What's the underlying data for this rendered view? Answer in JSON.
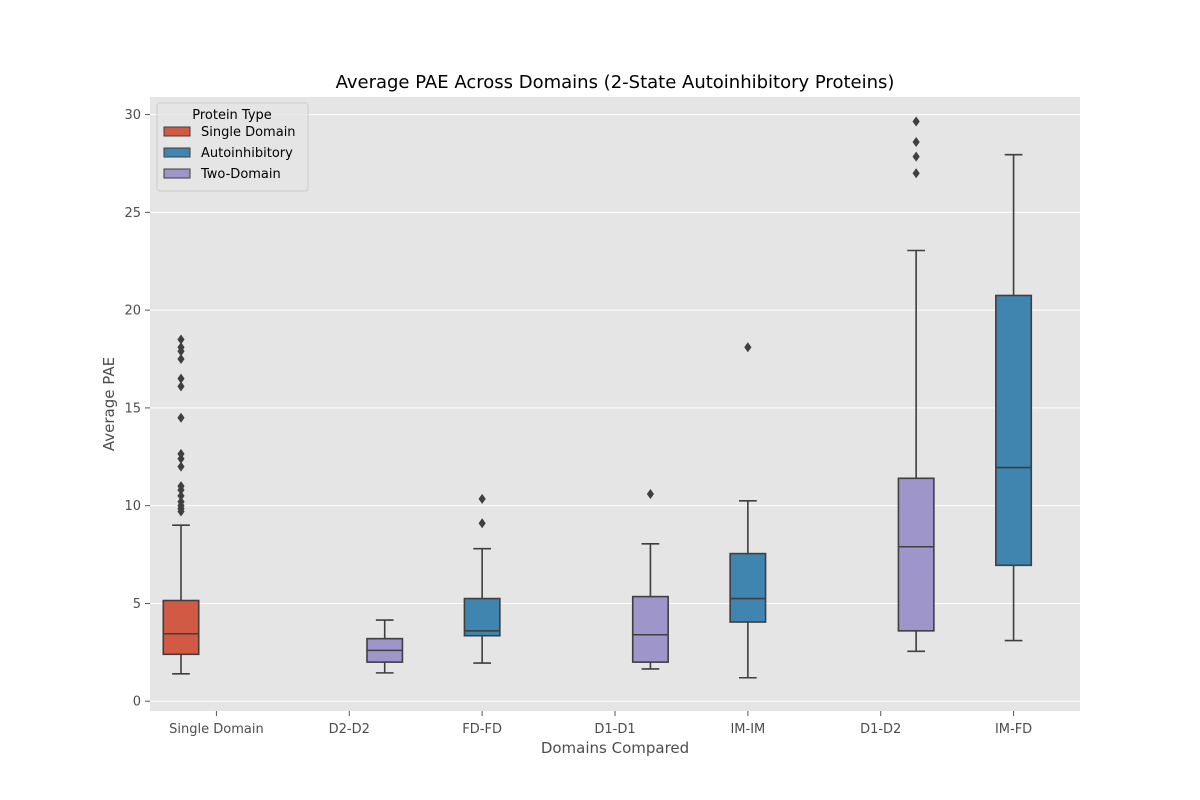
{
  "chart_data": {
    "type": "box",
    "title": "Average PAE Across Domains (2-State Autoinhibitory Proteins)",
    "xlabel": "Domains Compared",
    "ylabel": "Average PAE",
    "ylim": [
      -0.5,
      30.9
    ],
    "yticks": [
      0,
      5,
      10,
      15,
      20,
      25,
      30
    ],
    "grid": true,
    "categories": [
      "Single Domain",
      "D2-D2",
      "FD-FD",
      "D1-D1",
      "IM-IM",
      "D1-D2",
      "IM-FD"
    ],
    "legend": {
      "title": "Protein Type",
      "placement": "top-left",
      "entries": [
        {
          "name": "Single Domain",
          "color": "#d25a44"
        },
        {
          "name": "Autoinhibitory",
          "color": "#3f85af"
        },
        {
          "name": "Two-Domain",
          "color": "#9e95cb"
        }
      ]
    },
    "series": [
      {
        "name": "Single Domain",
        "color": "#d25a44",
        "boxes": [
          {
            "category": "Single Domain",
            "whisker_low": 1.4,
            "q1": 2.4,
            "median": 3.45,
            "q3": 5.15,
            "whisker_high": 9.0,
            "outliers": [
              9.7,
              9.85,
              10.0,
              10.2,
              10.5,
              10.8,
              11.0,
              12.0,
              12.4,
              12.65,
              14.5,
              16.1,
              16.5,
              17.5,
              17.9,
              18.1,
              18.5
            ]
          }
        ]
      },
      {
        "name": "Autoinhibitory",
        "color": "#3f85af",
        "boxes": [
          {
            "category": "FD-FD",
            "whisker_low": 1.95,
            "q1": 3.35,
            "median": 3.6,
            "q3": 5.25,
            "whisker_high": 7.8,
            "outliers": [
              9.1,
              10.35
            ]
          },
          {
            "category": "IM-IM",
            "whisker_low": 1.2,
            "q1": 4.05,
            "median": 5.25,
            "q3": 7.55,
            "whisker_high": 10.25,
            "outliers": [
              18.1
            ]
          },
          {
            "category": "IM-FD",
            "whisker_low": 3.1,
            "q1": 6.95,
            "median": 11.95,
            "q3": 20.75,
            "whisker_high": 27.95,
            "outliers": []
          }
        ]
      },
      {
        "name": "Two-Domain",
        "color": "#9e95cb",
        "boxes": [
          {
            "category": "D2-D2",
            "whisker_low": 1.45,
            "q1": 2.0,
            "median": 2.6,
            "q3": 3.2,
            "whisker_high": 4.15,
            "outliers": []
          },
          {
            "category": "D1-D1",
            "whisker_low": 1.65,
            "q1": 2.0,
            "median": 3.4,
            "q3": 5.35,
            "whisker_high": 8.05,
            "outliers": [
              10.6
            ]
          },
          {
            "category": "D1-D2",
            "whisker_low": 2.55,
            "q1": 3.6,
            "median": 7.9,
            "q3": 11.4,
            "whisker_high": 23.05,
            "outliers": [
              27.0,
              27.85,
              28.6,
              29.65
            ]
          }
        ]
      }
    ]
  }
}
